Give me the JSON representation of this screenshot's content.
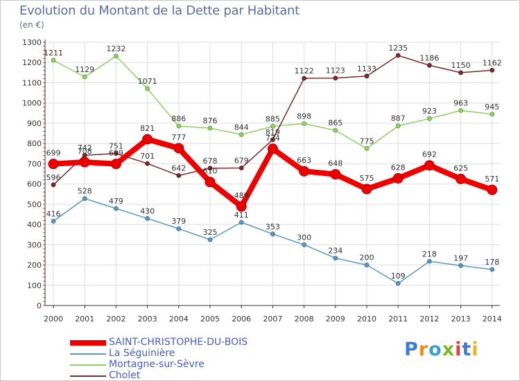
{
  "title": "Evolution du Montant de la Dette par Habitant",
  "unit": "(en €)",
  "logo": {
    "text": "Proxiti",
    "letter_colors": [
      "#3a7fd0",
      "#f08a1a",
      "#3aa0d0",
      "#7ab828",
      "#e04040",
      "#3a7fd0",
      "#f0b020"
    ]
  },
  "chart_data": {
    "type": "line",
    "title": "Evolution du Montant de la Dette par Habitant",
    "ylabel": "(en €)",
    "xlabel": "",
    "x": [
      "2000",
      "2001",
      "2002",
      "2003",
      "2004",
      "2005",
      "2006",
      "2007",
      "2008",
      "2009",
      "2010",
      "2011",
      "2012",
      "2013",
      "2014"
    ],
    "ylim": [
      0,
      1300
    ],
    "yticks": [
      "0",
      "100",
      "200",
      "300",
      "400",
      "500",
      "600",
      "700",
      "800",
      "900",
      "1000",
      "1100",
      "1200",
      "1300"
    ],
    "grid": true,
    "legend_position": "bottom-left",
    "series": [
      {
        "name": "SAINT-CHRISTOPHE-DU-BOIS",
        "color": "#ee0000",
        "values": [
          699,
          708,
          699,
          821,
          777,
          610,
          489,
          774,
          663,
          648,
          575,
          628,
          692,
          625,
          571
        ],
        "labels": [
          "699",
          "708",
          "699",
          "821",
          "777",
          "610",
          "489",
          "774",
          "663",
          "648",
          "575",
          "628",
          "692",
          "625",
          "571"
        ],
        "emphasis": true
      },
      {
        "name": "La Séguinière",
        "color": "#5898c8",
        "values": [
          416,
          528,
          479,
          430,
          379,
          325,
          411,
          353,
          300,
          234,
          200,
          109,
          218,
          197,
          178
        ],
        "labels": [
          "416",
          "528",
          "479",
          "430",
          "379",
          "325",
          "411",
          "353",
          "300",
          "234",
          "200",
          "109",
          "218",
          "197",
          "178"
        ],
        "emphasis": false
      },
      {
        "name": "Mortagne-sur-Sèvre",
        "color": "#90d060",
        "values": [
          1211,
          1129,
          1232,
          1071,
          886,
          876,
          844,
          885,
          898,
          865,
          775,
          887,
          923,
          963,
          945
        ],
        "labels": [
          "1211",
          "1129",
          "1232",
          "1071",
          "886",
          "876",
          "844",
          "885",
          "898",
          "865",
          "775",
          "887",
          "923",
          "963",
          "945"
        ],
        "emphasis": false
      },
      {
        "name": "Cholet",
        "color": "#7a2a2a",
        "values": [
          596,
          742,
          751,
          701,
          642,
          678,
          679,
          819,
          1122,
          1123,
          1133,
          1235,
          1186,
          1150,
          1162
        ],
        "labels": [
          "596",
          "742",
          "751",
          "701",
          "642",
          "678",
          "679",
          "819",
          "1122",
          "1123",
          "1133",
          "1235",
          "1186",
          "1150",
          "1162"
        ],
        "emphasis": false
      }
    ]
  }
}
